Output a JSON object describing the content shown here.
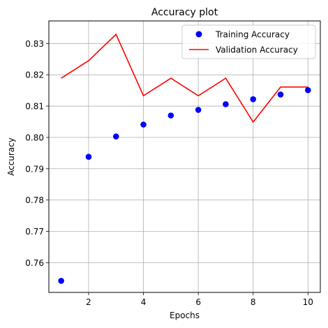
{
  "chart_data": {
    "type": "line",
    "title": "Accuracy plot",
    "xlabel": "Epochs",
    "ylabel": "Accuracy",
    "xlim": [
      0.55,
      10.45
    ],
    "ylim": [
      0.7505,
      0.8372
    ],
    "xticks": [
      2,
      4,
      6,
      8,
      10
    ],
    "yticks": [
      0.76,
      0.77,
      0.78,
      0.79,
      0.8,
      0.81,
      0.82,
      0.83
    ],
    "xtick_labels": [
      "2",
      "4",
      "6",
      "8",
      "10"
    ],
    "ytick_labels": [
      "0.76",
      "0.77",
      "0.78",
      "0.79",
      "0.80",
      "0.81",
      "0.82",
      "0.83"
    ],
    "grid": true,
    "legend_position": "top-right",
    "x": [
      1,
      2,
      3,
      4,
      5,
      6,
      7,
      8,
      9,
      10
    ],
    "series": [
      {
        "name": "Training Accuracy",
        "style": "markers",
        "color": "#0000ff",
        "values": [
          0.7542,
          0.7938,
          0.8003,
          0.8041,
          0.807,
          0.8088,
          0.8106,
          0.8122,
          0.8137,
          0.8151
        ]
      },
      {
        "name": "Validation Accuracy",
        "style": "line",
        "color": "#ff0000",
        "values": [
          0.8189,
          0.8245,
          0.8329,
          0.8133,
          0.8189,
          0.8133,
          0.8189,
          0.8049,
          0.8161,
          0.8161
        ]
      }
    ]
  }
}
